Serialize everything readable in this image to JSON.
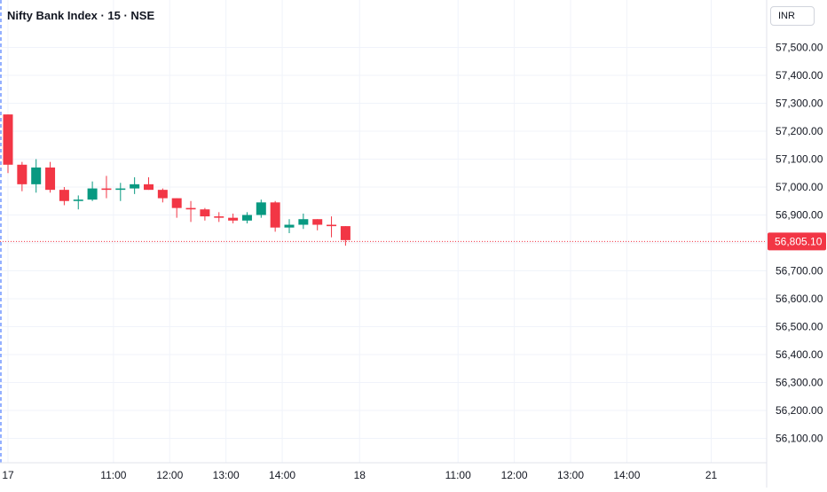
{
  "header": {
    "title": "Nifty Bank Index · 15 · NSE",
    "currency": "INR"
  },
  "colors": {
    "up": "#089981",
    "down": "#f23645",
    "grid": "#f0f3fa",
    "text": "#131722",
    "axis_text": "#131722",
    "session_line": "#2962ff"
  },
  "chart_data": {
    "type": "candlestick",
    "title": "Nifty Bank Index · 15 · NSE",
    "xlabel": "",
    "ylabel": "",
    "ylim": [
      56085,
      57585
    ],
    "y_ticks": [
      "57,500.00",
      "57,400.00",
      "57,300.00",
      "57,200.00",
      "57,100.00",
      "57,000.00",
      "56,900.00",
      "56,800.00",
      "56,700.00",
      "56,600.00",
      "56,500.00",
      "56,400.00",
      "56,300.00",
      "56,200.00",
      "56,100.00"
    ],
    "y_tick_values": [
      57500,
      57400,
      57300,
      57200,
      57100,
      57000,
      56900,
      56800,
      56700,
      56600,
      56500,
      56400,
      56300,
      56200,
      56100
    ],
    "x_tick_labels": [
      "17",
      "11:00",
      "12:00",
      "13:00",
      "14:00",
      "18",
      "11:00",
      "12:00",
      "13:00",
      "14:00",
      "21"
    ],
    "x_tick_index": [
      0,
      7.5,
      11.5,
      15.5,
      19.5,
      25,
      32,
      36,
      40,
      44,
      50
    ],
    "last_price": 56805.1,
    "last_price_label": "56,805.10",
    "grid": true,
    "candles": [
      {
        "open": 57260,
        "high": 57260,
        "low": 57050,
        "close": 57080
      },
      {
        "open": 57080,
        "high": 57090,
        "low": 56985,
        "close": 57010
      },
      {
        "open": 57010,
        "high": 57100,
        "low": 56980,
        "close": 57070
      },
      {
        "open": 57070,
        "high": 57090,
        "low": 56980,
        "close": 56990
      },
      {
        "open": 56990,
        "high": 57000,
        "low": 56935,
        "close": 56950
      },
      {
        "open": 56950,
        "high": 56970,
        "low": 56920,
        "close": 56955
      },
      {
        "open": 56955,
        "high": 57020,
        "low": 56950,
        "close": 56995
      },
      {
        "open": 56995,
        "high": 57040,
        "low": 56960,
        "close": 56990
      },
      {
        "open": 56990,
        "high": 57015,
        "low": 56950,
        "close": 56995
      },
      {
        "open": 56995,
        "high": 57035,
        "low": 56975,
        "close": 57010
      },
      {
        "open": 57010,
        "high": 57035,
        "low": 56990,
        "close": 56990
      },
      {
        "open": 56990,
        "high": 56995,
        "low": 56945,
        "close": 56960
      },
      {
        "open": 56960,
        "high": 56960,
        "low": 56890,
        "close": 56925
      },
      {
        "open": 56925,
        "high": 56950,
        "low": 56875,
        "close": 56920
      },
      {
        "open": 56920,
        "high": 56925,
        "low": 56880,
        "close": 56895
      },
      {
        "open": 56895,
        "high": 56910,
        "low": 56875,
        "close": 56890
      },
      {
        "open": 56890,
        "high": 56905,
        "low": 56870,
        "close": 56880
      },
      {
        "open": 56880,
        "high": 56910,
        "low": 56870,
        "close": 56900
      },
      {
        "open": 56900,
        "high": 56955,
        "low": 56890,
        "close": 56945
      },
      {
        "open": 56945,
        "high": 56950,
        "low": 56840,
        "close": 56855
      },
      {
        "open": 56855,
        "high": 56885,
        "low": 56835,
        "close": 56865
      },
      {
        "open": 56865,
        "high": 56905,
        "low": 56850,
        "close": 56885
      },
      {
        "open": 56885,
        "high": 56885,
        "low": 56845,
        "close": 56865
      },
      {
        "open": 56865,
        "high": 56895,
        "low": 56820,
        "close": 56860
      },
      {
        "open": 56860,
        "high": 56860,
        "low": 56790,
        "close": 56810
      }
    ]
  }
}
